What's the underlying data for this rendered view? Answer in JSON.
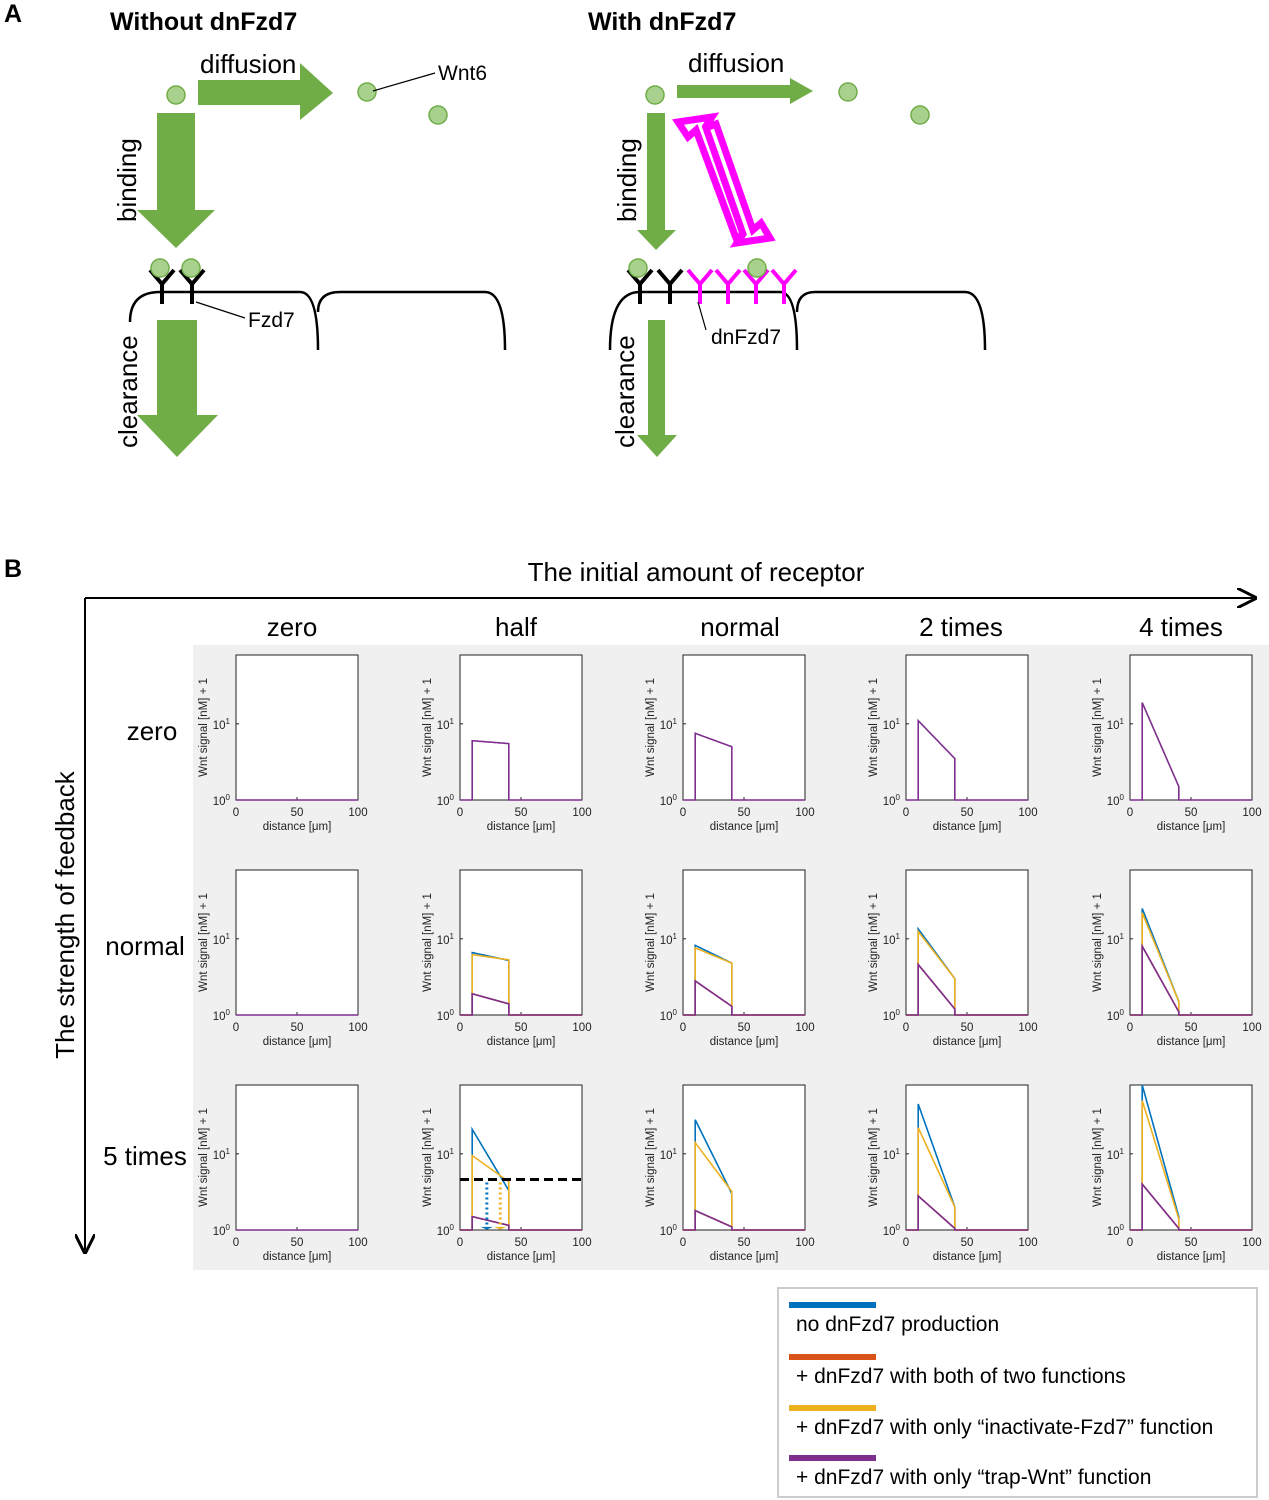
{
  "panel_a": {
    "letter": "A",
    "left_title": "Without dnFzd7",
    "right_title": "With dnFzd7",
    "diffusion": "diffusion",
    "binding": "binding",
    "clearance": "clearance",
    "wnt6": "Wnt6",
    "fzd7": "Fzd7",
    "dnfzd7": "dnFzd7",
    "colors": {
      "green": "#70ad47",
      "wnt_fill": "#a9d18e",
      "magenta": "#ff00ff"
    }
  },
  "panel_b": {
    "letter": "B",
    "x_axis_title": "The initial amount of receptor",
    "y_axis_title": "The strength of feedback",
    "columns": [
      "zero",
      "half",
      "normal",
      "2 times",
      "4 times"
    ],
    "rows": [
      "zero",
      "normal",
      "5 times"
    ]
  },
  "axes": {
    "ylabel": "Wnt signal [nM] + 1",
    "xlabel": "distance [μm]",
    "xticks": [
      "0",
      "50",
      "100"
    ],
    "ytick_base": "10",
    "yticks_exp": [
      "0",
      "1"
    ]
  },
  "legend": {
    "items": [
      {
        "label": "no dnFzd7 production",
        "color": "#0072bd"
      },
      {
        "label": "+ dnFzd7 with both of two functions",
        "color": "#d95319"
      },
      {
        "label": "+ dnFzd7 with only “inactivate-Fzd7” function",
        "color": "#edb120"
      },
      {
        "label": "+ dnFzd7 with only “trap-Wnt” function",
        "color": "#7e2f8e"
      }
    ]
  },
  "chart_data": {
    "type": "line",
    "xlim": [
      0,
      100
    ],
    "ylim": [
      1,
      80
    ],
    "yscale": "log",
    "source_range": [
      10,
      40
    ],
    "series_order": [
      "blue",
      "red",
      "yellow",
      "purple"
    ],
    "panels": [
      {
        "row": "zero",
        "col": "zero",
        "series": {
          "purple": [
            1,
            1
          ]
        }
      },
      {
        "row": "zero",
        "col": "half",
        "series": {
          "purple": [
            6.0,
            5.5
          ]
        }
      },
      {
        "row": "zero",
        "col": "normal",
        "series": {
          "purple": [
            7.5,
            5.0
          ]
        }
      },
      {
        "row": "zero",
        "col": "2 times",
        "series": {
          "purple": [
            11,
            3.5
          ]
        }
      },
      {
        "row": "zero",
        "col": "4 times",
        "series": {
          "purple": [
            19,
            1.5
          ]
        }
      },
      {
        "row": "normal",
        "col": "zero",
        "series": {
          "purple": [
            1,
            1
          ]
        }
      },
      {
        "row": "normal",
        "col": "half",
        "series": {
          "blue": [
            6.6,
            5.2
          ],
          "yellow": [
            6.2,
            5.3
          ],
          "red": [
            1.9,
            1.4
          ],
          "purple": [
            1.9,
            1.4
          ]
        }
      },
      {
        "row": "normal",
        "col": "normal",
        "series": {
          "blue": [
            8.2,
            4.8
          ],
          "yellow": [
            7.6,
            4.8
          ],
          "red": [
            2.8,
            1.3
          ],
          "purple": [
            2.8,
            1.3
          ]
        }
      },
      {
        "row": "normal",
        "col": "2 times",
        "series": {
          "blue": [
            13.5,
            3.0
          ],
          "yellow": [
            12.5,
            3.0
          ],
          "red": [
            4.6,
            1.2
          ],
          "purple": [
            4.6,
            1.2
          ]
        }
      },
      {
        "row": "normal",
        "col": "4 times",
        "series": {
          "blue": [
            25,
            1.5
          ],
          "yellow": [
            22,
            1.5
          ],
          "red": [
            8,
            1.1
          ],
          "purple": [
            8,
            1.1
          ]
        }
      },
      {
        "row": "5 times",
        "col": "zero",
        "series": {
          "purple": [
            1,
            1
          ]
        }
      },
      {
        "row": "5 times",
        "col": "half",
        "series": {
          "blue": [
            21,
            3.3
          ],
          "yellow": [
            9.5,
            4.3
          ],
          "red": [
            1.5,
            1.15
          ],
          "purple": [
            1.5,
            1.15
          ]
        },
        "threshold": 4.6,
        "threshold_crossings": {
          "blue": 22,
          "yellow": 33
        }
      },
      {
        "row": "5 times",
        "col": "normal",
        "series": {
          "blue": [
            28,
            3.0
          ],
          "yellow": [
            14,
            3.2
          ],
          "red": [
            1.8,
            1.1
          ],
          "purple": [
            1.8,
            1.1
          ]
        }
      },
      {
        "row": "5 times",
        "col": "2 times",
        "series": {
          "blue": [
            45,
            2.0
          ],
          "yellow": [
            22,
            2.0
          ],
          "red": [
            2.8,
            1.05
          ],
          "purple": [
            2.8,
            1.05
          ]
        }
      },
      {
        "row": "5 times",
        "col": "4 times",
        "series": {
          "blue": [
            80,
            1.5
          ],
          "yellow": [
            50,
            1.4
          ],
          "red": [
            4.0,
            1.05
          ],
          "purple": [
            4.0,
            1.05
          ]
        }
      }
    ]
  }
}
